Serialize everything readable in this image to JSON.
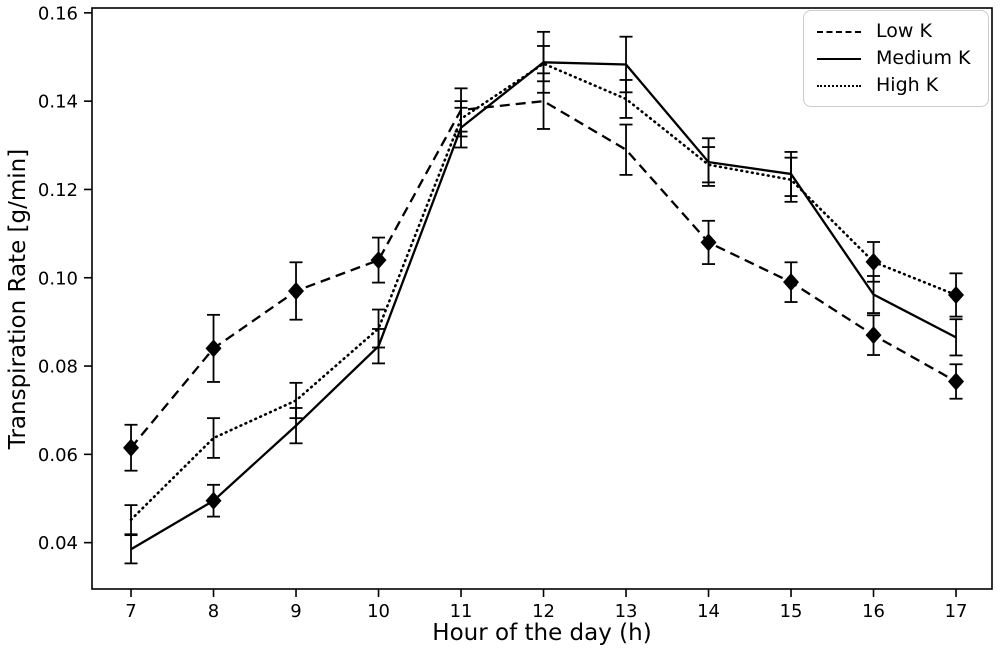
{
  "chart_data": {
    "type": "line",
    "title": "",
    "xlabel": "Hour of the day (h)",
    "ylabel": "Transpiration Rate [g/min]",
    "x": [
      7,
      8,
      9,
      10,
      11,
      12,
      13,
      14,
      15,
      16,
      17
    ],
    "xlim": [
      6.527,
      17.436
    ],
    "ylim": [
      0.0295,
      0.1611
    ],
    "yticks": [
      0.04,
      0.06,
      0.08,
      0.1,
      0.12,
      0.14,
      0.16
    ],
    "grid": false,
    "line_color": "#000000",
    "background": "#ffffff",
    "marker_shape": "diamond",
    "series": [
      {
        "name": "Low K",
        "style": "dashed",
        "values": [
          0.0615,
          0.084,
          0.097,
          0.104,
          0.138,
          0.14,
          0.129,
          0.108,
          0.099,
          0.087,
          0.0765
        ],
        "errors": [
          0.0052,
          0.0076,
          0.0065,
          0.0051,
          0.0049,
          0.0063,
          0.0057,
          0.0049,
          0.0045,
          0.0045,
          0.0039
        ],
        "markers": [
          true,
          true,
          true,
          true,
          false,
          false,
          false,
          true,
          true,
          true,
          true
        ]
      },
      {
        "name": "Medium K",
        "style": "solid",
        "values": [
          0.0385,
          0.0495,
          0.0665,
          0.0845,
          0.134,
          0.1488,
          0.1483,
          0.1262,
          0.1235,
          0.0962,
          0.0865
        ],
        "errors": [
          0.0032,
          0.0036,
          0.004,
          0.0039,
          0.0045,
          0.0069,
          0.0063,
          0.0054,
          0.005,
          0.0042,
          0.0041
        ],
        "markers": [
          false,
          true,
          false,
          false,
          false,
          false,
          false,
          false,
          false,
          false,
          false
        ]
      },
      {
        "name": "High K",
        "style": "dotted",
        "values": [
          0.0452,
          0.0637,
          0.0722,
          0.0885,
          0.136,
          0.1485,
          0.1405,
          0.1256,
          0.1222,
          0.1036,
          0.0961
        ],
        "errors": [
          0.0033,
          0.0045,
          0.004,
          0.0043,
          0.004,
          0.004,
          0.0043,
          0.004,
          0.005,
          0.0045,
          0.0049
        ],
        "markers": [
          false,
          false,
          false,
          false,
          false,
          false,
          false,
          false,
          false,
          true,
          true
        ]
      }
    ],
    "legend": {
      "position": "upper right",
      "entries": [
        "Low K",
        "Medium K",
        "High K"
      ]
    }
  }
}
